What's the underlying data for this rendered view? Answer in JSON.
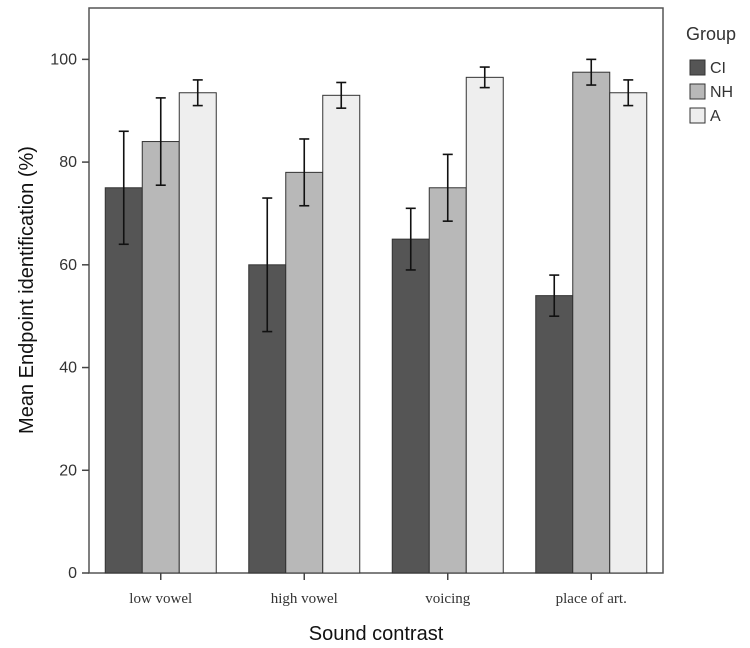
{
  "chart_data": {
    "type": "bar",
    "xlabel": "Sound contrast",
    "ylabel": "Mean Endpoint identification (%)",
    "ylim": [
      0,
      110
    ],
    "yticks": [
      0,
      20,
      40,
      60,
      80,
      100
    ],
    "grid": false,
    "legend": {
      "title": "Group",
      "placement": "right"
    },
    "categories": [
      "low vowel",
      "high vowel",
      "voicing",
      "place of art."
    ],
    "series": [
      {
        "name": "CI",
        "color": "#555555",
        "values": [
          75,
          60,
          65,
          54
        ],
        "err_low": [
          64,
          47,
          59,
          50
        ],
        "err_high": [
          86,
          73,
          71,
          58
        ]
      },
      {
        "name": "NH",
        "color": "#b8b8b8",
        "values": [
          84,
          78,
          75,
          97.5
        ],
        "err_low": [
          75.5,
          71.5,
          68.5,
          95
        ],
        "err_high": [
          92.5,
          84.5,
          81.5,
          100
        ]
      },
      {
        "name": "A",
        "color": "#eeeeee",
        "values": [
          93.5,
          93,
          96.5,
          93.5
        ],
        "err_low": [
          91,
          90.5,
          94.5,
          91
        ],
        "err_high": [
          96,
          95.5,
          98.5,
          96
        ]
      }
    ]
  }
}
